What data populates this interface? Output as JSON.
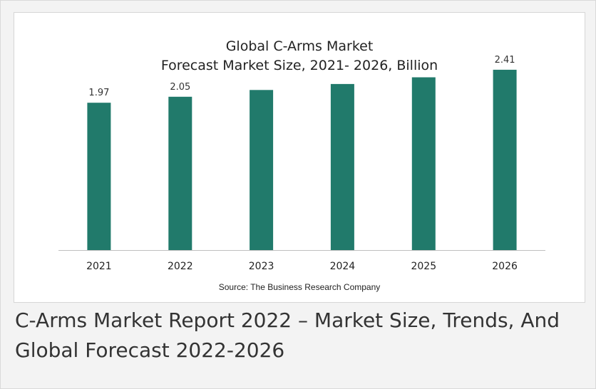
{
  "chart_data": {
    "type": "bar",
    "title_line1": "Global C-Arms Market",
    "title_line2": "Forecast Market Size, 2021- 2026, Billion",
    "categories": [
      "2021",
      "2022",
      "2023",
      "2024",
      "2025",
      "2026"
    ],
    "values": [
      1.97,
      2.05,
      2.14,
      2.22,
      2.31,
      2.41
    ],
    "data_labels": [
      "1.97",
      "2.05",
      "",
      "",
      "",
      "2.41"
    ],
    "ylim": [
      0,
      2.6
    ],
    "grid": false,
    "bar_color": "#217a6b",
    "xlabel": "",
    "ylabel": ""
  },
  "source": "Source: The Business Research Company",
  "caption": "C-Arms Market Report 2022  – Market Size, Trends, And Global Forecast 2022-2026"
}
